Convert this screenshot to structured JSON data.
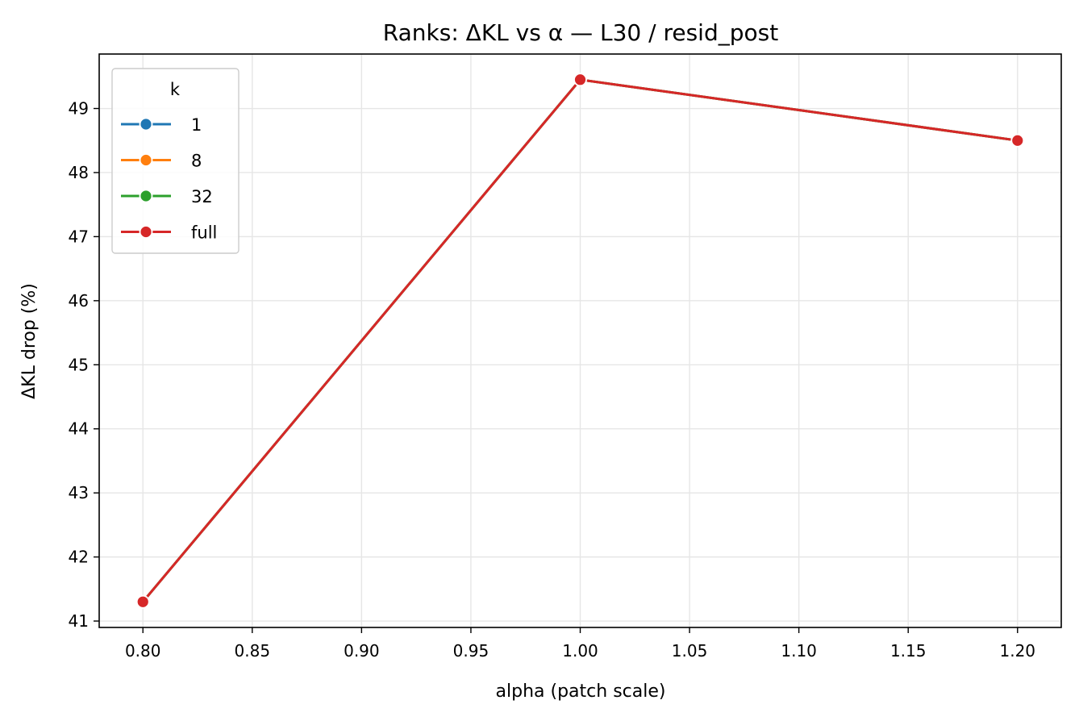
{
  "chart_data": {
    "type": "line",
    "title": "Ranks: ΔKL vs α — L30 / resid_post",
    "xlabel": "alpha (patch scale)",
    "ylabel": "ΔKL drop (%)",
    "xlim": [
      0.78,
      1.22
    ],
    "ylim": [
      40.9,
      49.85
    ],
    "xticks": [
      0.8,
      0.85,
      0.9,
      0.95,
      1.0,
      1.05,
      1.1,
      1.15,
      1.2
    ],
    "xtick_labels": [
      "0.80",
      "0.85",
      "0.90",
      "0.95",
      "1.00",
      "1.05",
      "1.10",
      "1.15",
      "1.20"
    ],
    "yticks": [
      41,
      42,
      43,
      44,
      45,
      46,
      47,
      48,
      49
    ],
    "ytick_labels": [
      "41",
      "42",
      "43",
      "44",
      "45",
      "46",
      "47",
      "48",
      "49"
    ],
    "grid": true,
    "legend": {
      "title": "k",
      "position": "top-left"
    },
    "x": [
      0.8,
      1.0,
      1.2
    ],
    "series": [
      {
        "name": "1",
        "color": "#1f77b4",
        "values": [
          41.3,
          49.45,
          48.5
        ]
      },
      {
        "name": "8",
        "color": "#ff7f0e",
        "values": [
          41.3,
          49.45,
          48.5
        ]
      },
      {
        "name": "32",
        "color": "#2ca02c",
        "values": [
          41.3,
          49.45,
          48.5
        ]
      },
      {
        "name": "full",
        "color": "#d62728",
        "values": [
          41.3,
          49.45,
          48.5
        ]
      }
    ]
  }
}
